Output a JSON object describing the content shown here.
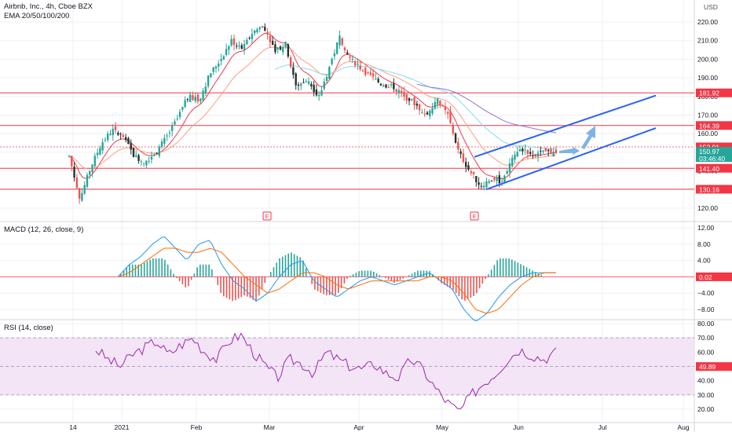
{
  "header": {
    "symbol_line": "Airbnb, Inc., 4h, Cboe BZX",
    "ema_line": "EMA 20/50/100/200",
    "currency": "USD",
    "macd_title": "MACD (12, 26, close, 9)",
    "rsi_title": "RSI (14, close)"
  },
  "colors": {
    "candle_up": "#26a69a",
    "candle_down": "#ef5350",
    "candle_dark": "#26332f",
    "level_line": "#f23645",
    "channel": "#2962ff",
    "arrow": "#7fb3e6",
    "ema20": "#f23645",
    "ema50": "#ff9e80",
    "ema100": "#80deea",
    "ema200": "#9575cd",
    "macd_line": "#2196f3",
    "signal_line": "#ff6d00",
    "rsi_line": "#9c27b0",
    "rsi_band": "#f3e5f5"
  },
  "chart_data": [
    {
      "type": "candlestick",
      "title": "Airbnb, Inc., 4h, Cboe BZX",
      "currency": "USD",
      "x_labels": [
        "14",
        "2021",
        "Feb",
        "Mar",
        "Apr",
        "May",
        "Jun",
        "Jul",
        "Aug"
      ],
      "y_ticks": [
        120,
        130,
        140,
        150,
        160,
        170,
        180,
        190,
        200,
        210,
        220
      ],
      "ylim": [
        115,
        225
      ],
      "price_path": [
        [
          "14",
          148
        ],
        [
          "",
          125
        ],
        [
          "",
          142
        ],
        [
          "",
          155
        ],
        [
          "",
          162
        ],
        [
          "",
          158
        ],
        [
          "",
          148
        ],
        [
          "2021",
          145
        ],
        [
          "",
          150
        ],
        [
          "",
          158
        ],
        [
          "",
          168
        ],
        [
          "",
          180
        ],
        [
          "",
          178
        ],
        [
          "",
          192
        ],
        [
          "Feb",
          200
        ],
        [
          "",
          210
        ],
        [
          "",
          205
        ],
        [
          "",
          215
        ],
        [
          "",
          218
        ],
        [
          "",
          205
        ],
        [
          "",
          208
        ],
        [
          "Mar",
          185
        ],
        [
          "",
          190
        ],
        [
          "",
          178
        ],
        [
          "",
          195
        ],
        [
          "",
          212
        ],
        [
          "",
          200
        ],
        [
          "",
          195
        ],
        [
          "Apr",
          190
        ],
        [
          "",
          186
        ],
        [
          "",
          185
        ],
        [
          "",
          180
        ],
        [
          "",
          176
        ],
        [
          "",
          170
        ],
        [
          "",
          178
        ],
        [
          "May",
          170
        ],
        [
          "",
          150
        ],
        [
          "",
          140
        ],
        [
          "",
          132
        ],
        [
          "",
          136
        ],
        [
          "",
          134
        ],
        [
          "",
          148
        ],
        [
          "Jun",
          152
        ],
        [
          "",
          148
        ],
        [
          "",
          150
        ],
        [
          "",
          151
        ]
      ],
      "levels": [
        181.92,
        164.39,
        152.91,
        141.4,
        130.16
      ],
      "last_price": 150.97,
      "countdown": "03:46:40",
      "earnings_markers": [
        "E",
        "E"
      ],
      "ema_lengths": [
        20,
        50,
        100,
        200
      ],
      "channel": {
        "lower": [
          [
            130.16,
            "May"
          ],
          [
            162,
            "Jul"
          ]
        ],
        "upper": [
          [
            147,
            "May"
          ],
          [
            180,
            "Jul"
          ]
        ]
      }
    },
    {
      "type": "line",
      "title": "MACD (12, 26, close, 9)",
      "y_ticks": [
        12.0,
        8.0,
        4.0,
        0.0,
        -4.0,
        -8.0
      ],
      "ylim": [
        -12,
        13
      ],
      "last_value": 0.02,
      "macd": [
        0,
        3,
        5,
        8,
        10,
        7,
        4,
        8,
        9,
        3,
        -1,
        -3,
        -6,
        -4,
        0,
        3,
        4,
        -1,
        -3,
        -5,
        -3,
        -1,
        0,
        -1,
        -2,
        -1,
        0,
        1,
        -1,
        -3,
        -8,
        -11,
        -9,
        -5,
        -2,
        0,
        1,
        1,
        1
      ],
      "signal": [
        0,
        1,
        3,
        5,
        7,
        7,
        6,
        6,
        7,
        6,
        3,
        0,
        -2,
        -4,
        -3,
        -1,
        1,
        1,
        0,
        -2,
        -3,
        -2,
        -1,
        -1,
        -1,
        -1,
        -1,
        0,
        0,
        -1,
        -4,
        -8,
        -9,
        -8,
        -5,
        -2,
        0,
        1,
        1
      ]
    },
    {
      "type": "line",
      "title": "RSI (14, close)",
      "y_ticks": [
        80,
        70,
        60,
        50,
        40,
        30,
        20
      ],
      "ylim": [
        15,
        82
      ],
      "band": [
        30,
        70
      ],
      "last_value": 49.89,
      "values": [
        62,
        55,
        50,
        58,
        63,
        68,
        58,
        65,
        70,
        60,
        55,
        68,
        72,
        60,
        50,
        42,
        55,
        52,
        45,
        60,
        55,
        50,
        48,
        52,
        45,
        42,
        55,
        48,
        35,
        25,
        18,
        30,
        38,
        45,
        55,
        62,
        58,
        55,
        60
      ]
    }
  ],
  "price_labels": {
    "l1": "181.92",
    "l2": "164.39",
    "l3": "152.91",
    "l4": "150.97",
    "l4b": "03:46:40",
    "l5": "141.40",
    "l6": "130.16",
    "macd_last": "0.02",
    "rsi_last": "49.89"
  }
}
